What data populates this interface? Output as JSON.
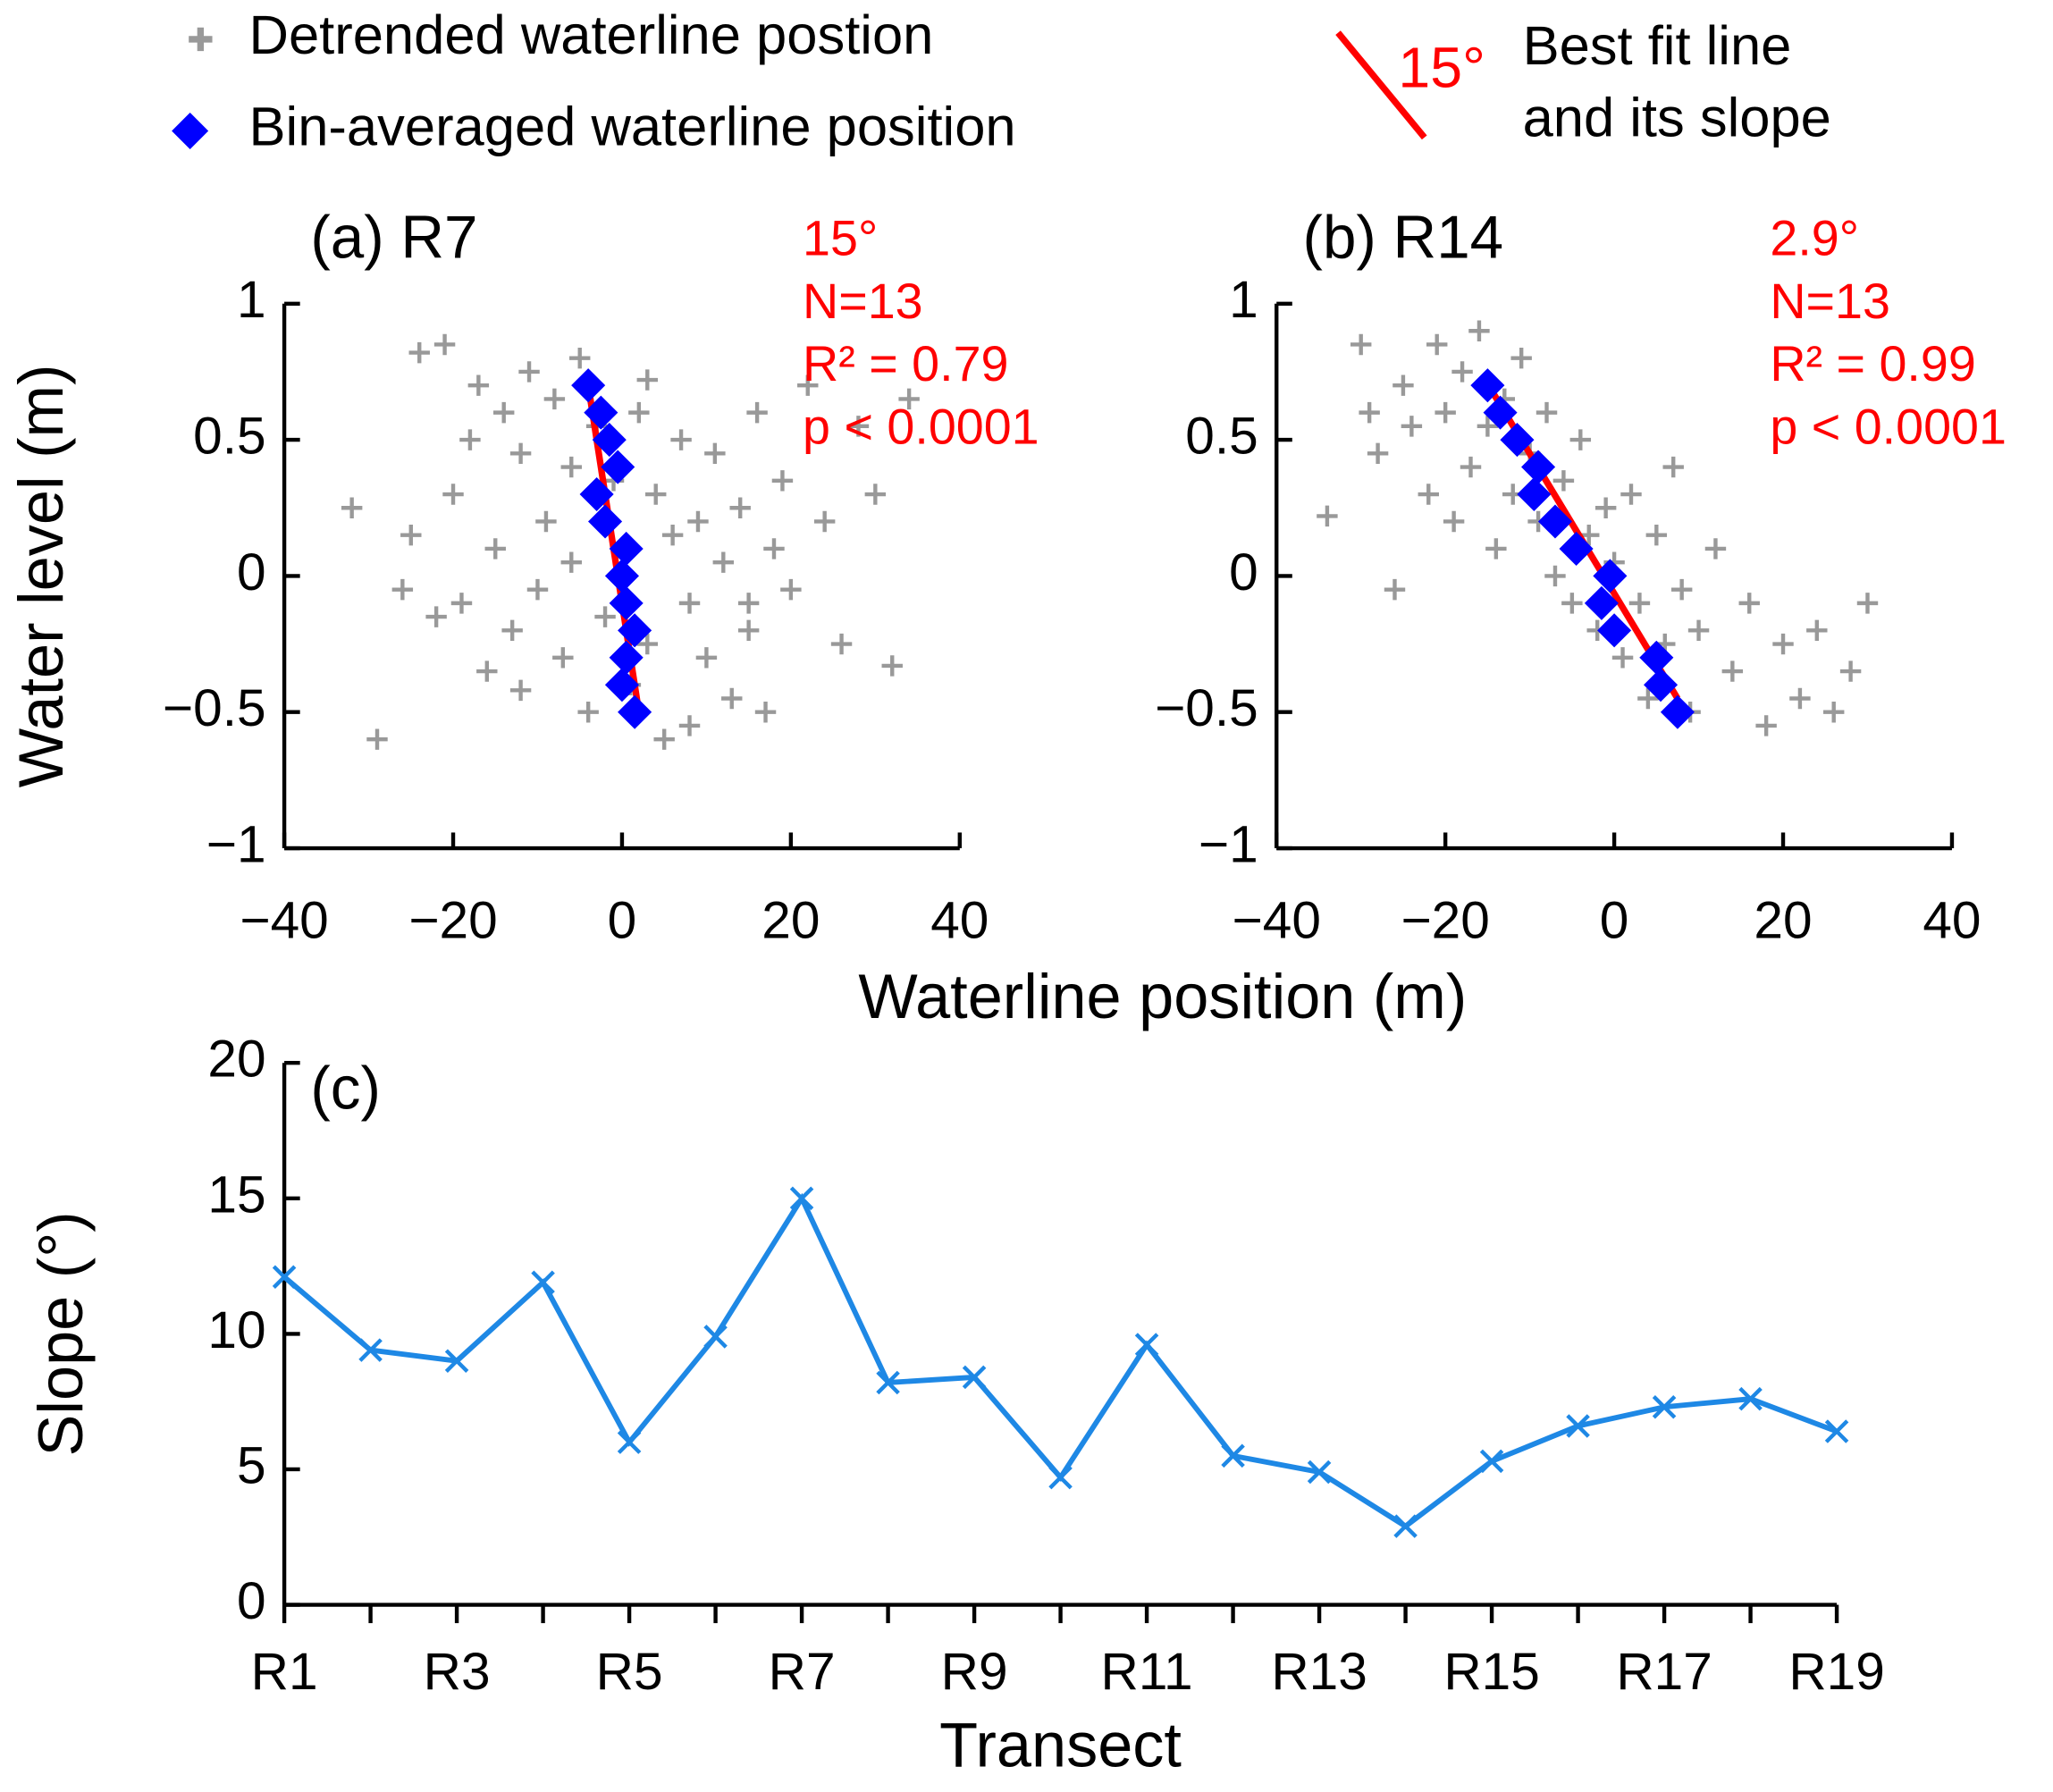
{
  "legend": {
    "fit_example": "15°",
    "fit_text": [
      "Best fit line",
      "and its slope"
    ]
  },
  "shared": {
    "y_label": "Water level (m)",
    "x_label": "Waterline position (m)"
  },
  "chart_data": [
    {
      "type": "scatter",
      "title": "(a) R7",
      "annotations": [
        "15°",
        "N=13",
        "R² = 0.79",
        "p < 0.0001"
      ],
      "xlim": [
        -40,
        40
      ],
      "ylim": [
        -1,
        1
      ],
      "xticks": [
        {
          "value": -40,
          "label": "−40"
        },
        {
          "value": -20,
          "label": "−20"
        },
        0,
        20,
        40
      ],
      "yticks": [
        {
          "value": -1,
          "label": "−1"
        },
        {
          "value": -0.5,
          "label": "−0.5"
        },
        0,
        0.5,
        1
      ],
      "series": [
        {
          "name": "Detrended waterline postion",
          "color": "#999999",
          "marker": "plus",
          "x": [
            -32,
            -29,
            -25,
            -24,
            -22,
            -21,
            -20,
            -19,
            -18,
            -17,
            -16,
            -15,
            -14,
            -13,
            -12,
            -11,
            -10,
            -9,
            -8,
            -7,
            -6,
            -5,
            -4,
            -3,
            -2,
            -1,
            0,
            1,
            2,
            3,
            4,
            5,
            6,
            7,
            8,
            9,
            10,
            11,
            12,
            13,
            14,
            15,
            16,
            17,
            18,
            19,
            20,
            22,
            24,
            26,
            28,
            30,
            32,
            34,
            -26,
            -12,
            -6,
            3,
            8,
            15
          ],
          "values": [
            0.25,
            -0.6,
            0.15,
            0.82,
            -0.15,
            0.85,
            0.3,
            -0.1,
            0.5,
            0.7,
            -0.35,
            0.1,
            0.6,
            -0.2,
            0.45,
            0.75,
            -0.05,
            0.2,
            0.65,
            -0.3,
            0.4,
            0.8,
            -0.5,
            0.55,
            -0.15,
            0.35,
            0.1,
            -0.4,
            0.6,
            -0.25,
            0.3,
            -0.6,
            0.15,
            0.5,
            -0.1,
            0.2,
            -0.3,
            0.45,
            0.05,
            -0.45,
            0.25,
            -0.2,
            0.6,
            -0.5,
            0.1,
            0.35,
            -0.05,
            0.7,
            0.2,
            -0.25,
            0.55,
            0.3,
            -0.33,
            0.65,
            -0.05,
            -0.42,
            0.05,
            0.72,
            -0.55,
            -0.1
          ]
        },
        {
          "name": "Bin-averaged waterline position",
          "color": "#0000ff",
          "marker": "diamond",
          "x": [
            -4,
            -2.5,
            -1.5,
            -0.5,
            -3,
            -2,
            0.5,
            0,
            0.5,
            1.5,
            0.5,
            0,
            1.5
          ],
          "values": [
            0.7,
            0.6,
            0.5,
            0.4,
            0.3,
            0.2,
            0.1,
            0,
            -0.1,
            -0.2,
            -0.3,
            -0.4,
            -0.5
          ]
        }
      ],
      "fit": {
        "color": "#ff0000",
        "x": [
          -4,
          2
        ],
        "values": [
          0.7,
          -0.5
        ]
      }
    },
    {
      "type": "scatter",
      "title": "(b) R14",
      "annotations": [
        "2.9°",
        "N=13",
        "R² = 0.99",
        "p < 0.0001"
      ],
      "xlim": [
        -40,
        40
      ],
      "ylim": [
        -1,
        1
      ],
      "xticks": [
        {
          "value": -40,
          "label": "−40"
        },
        {
          "value": -20,
          "label": "−20"
        },
        0,
        20,
        40
      ],
      "yticks": [
        {
          "value": -1,
          "label": "−1"
        },
        {
          "value": -0.5,
          "label": "−0.5"
        },
        0,
        0.5,
        1
      ],
      "series": [
        {
          "color": "#999999",
          "marker": "plus",
          "x": [
            -34,
            -30,
            -29,
            -28,
            -26,
            -25,
            -24,
            -22,
            -21,
            -20,
            -19,
            -18,
            -17,
            -16,
            -15,
            -14,
            -13,
            -12,
            -11,
            -10,
            -9,
            -8,
            -7,
            -6,
            -5,
            -4,
            -3,
            -2,
            -1,
            0,
            1,
            2,
            3,
            4,
            5,
            6,
            7,
            8,
            9,
            10,
            12,
            14,
            16,
            18,
            20,
            22,
            24,
            26,
            28,
            30
          ],
          "values": [
            0.22,
            0.85,
            0.6,
            0.45,
            -0.05,
            0.7,
            0.55,
            0.3,
            0.85,
            0.6,
            0.2,
            0.75,
            0.4,
            0.9,
            0.55,
            0.1,
            0.65,
            0.3,
            0.8,
            0.45,
            0.2,
            0.6,
            0.0,
            0.35,
            -0.1,
            0.5,
            0.15,
            -0.2,
            0.25,
            0.05,
            -0.3,
            0.3,
            -0.1,
            -0.45,
            0.15,
            -0.25,
            0.4,
            -0.05,
            -0.5,
            -0.2,
            0.1,
            -0.35,
            -0.1,
            -0.55,
            -0.25,
            -0.45,
            -0.2,
            -0.5,
            -0.35,
            -0.1
          ]
        },
        {
          "color": "#0000ff",
          "marker": "diamond",
          "x": [
            -15,
            -13.5,
            -11.5,
            -9,
            -9.5,
            -7,
            -4.5,
            -0.5,
            -1.5,
            0,
            5,
            5.5,
            7.5
          ],
          "values": [
            0.7,
            0.6,
            0.5,
            0.4,
            0.3,
            0.2,
            0.1,
            0,
            -0.1,
            -0.2,
            -0.3,
            -0.4,
            -0.5
          ]
        }
      ],
      "fit": {
        "color": "#ff0000",
        "x": [
          -14.5,
          7.5
        ],
        "values": [
          0.68,
          -0.45
        ]
      }
    },
    {
      "type": "line",
      "title": "(c)",
      "x_label": "Transect",
      "y_label": "Slope (°)",
      "categories": [
        "R1",
        null,
        "R3",
        null,
        "R5",
        null,
        "R7",
        null,
        "R9",
        null,
        "R11",
        null,
        "R13",
        null,
        "R15",
        null,
        "R17",
        null,
        "R19"
      ],
      "ylim": [
        0,
        20
      ],
      "yticks": [
        0,
        5,
        10,
        15,
        20
      ],
      "series": [
        {
          "color": "#1e88e5",
          "values": [
            12.1,
            9.4,
            9.0,
            11.9,
            6.0,
            9.9,
            15,
            8.2,
            8.4,
            4.7,
            9.6,
            5.5,
            4.9,
            2.9,
            5.3,
            6.6,
            7.3,
            7.6,
            6.4
          ]
        }
      ]
    }
  ]
}
